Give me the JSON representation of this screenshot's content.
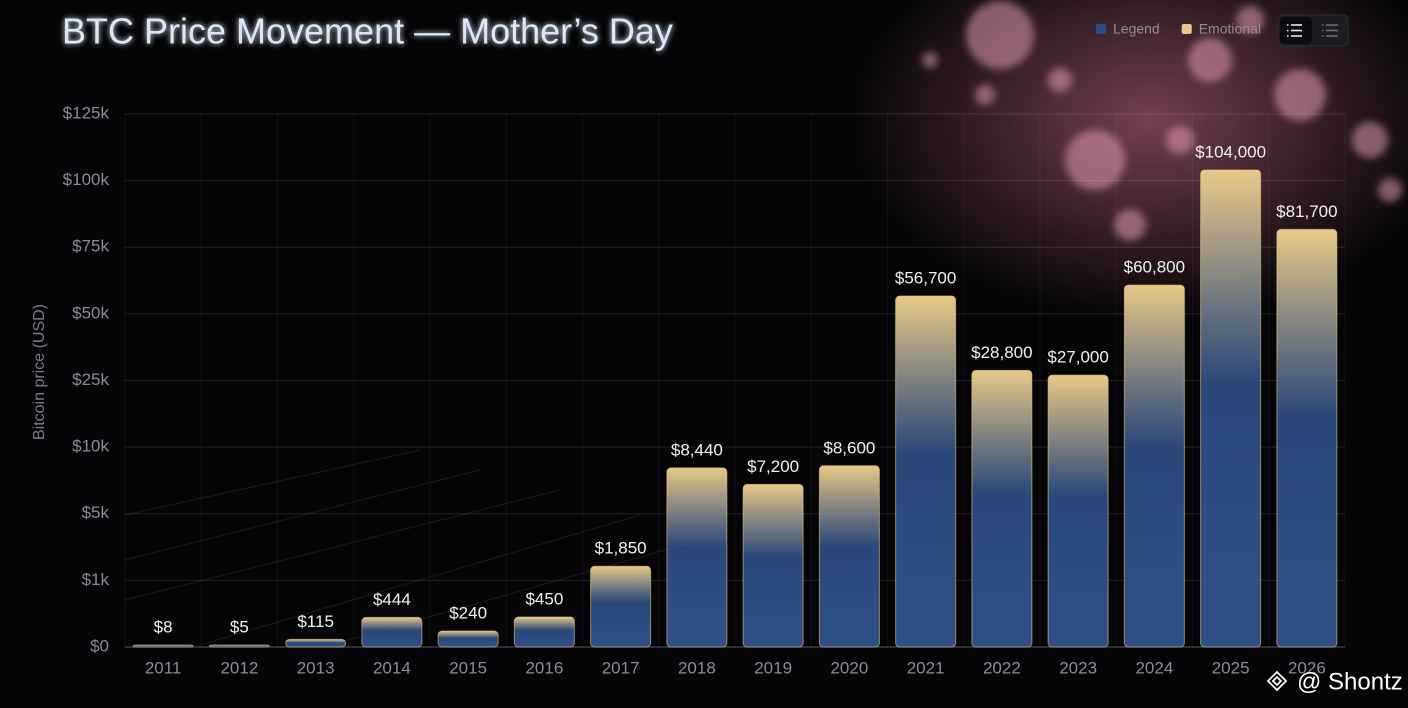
{
  "chart_data": {
    "type": "bar",
    "title": "BTC Price Movement — Mother’s Day",
    "y_label": "Bitcoin price (USD)",
    "y_scale": "tick-spaced",
    "legend": [
      {
        "label": "Legend",
        "color": "#2e4f86"
      },
      {
        "label": "Emotional",
        "color": "#e9c988"
      }
    ],
    "watermark": "@ Shontz",
    "categories": [
      "2011",
      "2012",
      "2013",
      "2014",
      "2015",
      "2016",
      "2017",
      "2018",
      "2019",
      "2020",
      "2021",
      "2022",
      "2023",
      "2024",
      "2025",
      "2026"
    ],
    "values": [
      8,
      5,
      115,
      444,
      240,
      450,
      1850,
      8440,
      7200,
      8600,
      56700,
      28800,
      27000,
      60800,
      104000,
      81700
    ],
    "value_labels": [
      "$8",
      "$5",
      "$115",
      "$444",
      "$240",
      "$450",
      "$1,850",
      "$8,440",
      "$7,200",
      "$8,600",
      "$56,700",
      "$28,800",
      "$27,000",
      "$60,800",
      "$104,000",
      "$81,700"
    ],
    "ylim": [
      0,
      125000
    ],
    "yticks": [
      {
        "value": 0,
        "label": "$0"
      },
      {
        "value": 1000,
        "label": "$1k"
      },
      {
        "value": 5000,
        "label": "$5k"
      },
      {
        "value": 10000,
        "label": "$10k"
      },
      {
        "value": 25000,
        "label": "$25k"
      },
      {
        "value": 50000,
        "label": "$50k"
      },
      {
        "value": 75000,
        "label": "$75k"
      },
      {
        "value": 100000,
        "label": "$100k"
      },
      {
        "value": 125000,
        "label": "$125k"
      }
    ],
    "grid": true
  }
}
